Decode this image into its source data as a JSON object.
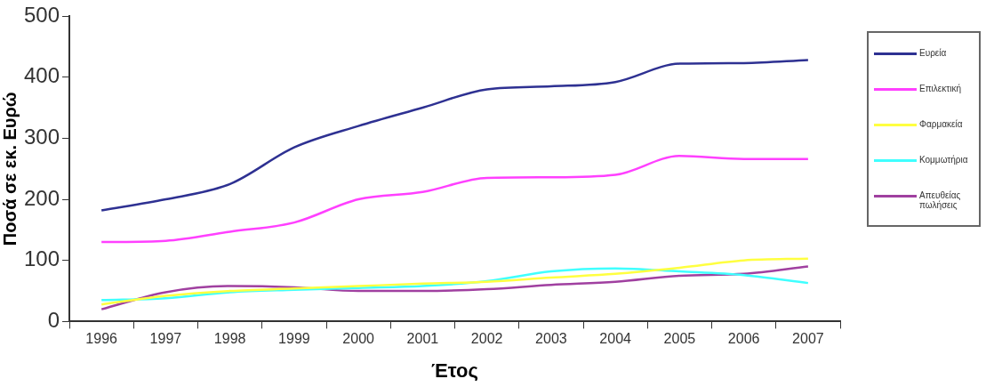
{
  "chart_data": {
    "type": "line",
    "xlabel": "Έτος",
    "ylabel": "Ποσά σε εκ. Ευρώ",
    "categories": [
      "1996",
      "1997",
      "1998",
      "1999",
      "2000",
      "2001",
      "2002",
      "2003",
      "2004",
      "2005",
      "2006",
      "2007"
    ],
    "series": [
      {
        "name": "Ευρεία",
        "color": "#2e3192",
        "values": [
          182,
          200,
          225,
          285,
          320,
          350,
          380,
          385,
          392,
          422,
          423,
          428
        ]
      },
      {
        "name": "Επιλεκτική",
        "color": "#ff40ff",
        "values": [
          130,
          132,
          147,
          162,
          200,
          212,
          235,
          236,
          240,
          271,
          266,
          266
        ]
      },
      {
        "name": "Φαρμακεία",
        "color": "#ffff40",
        "values": [
          28,
          42,
          50,
          54,
          58,
          62,
          65,
          72,
          78,
          88,
          100,
          103
        ]
      },
      {
        "name": "Κομμωτήρια",
        "color": "#40ffff",
        "values": [
          35,
          38,
          48,
          52,
          55,
          58,
          66,
          82,
          87,
          82,
          76,
          63
        ]
      },
      {
        "name": "Απευθείας πωλήσεις",
        "color": "#a040a0",
        "values": [
          20,
          48,
          58,
          56,
          50,
          50,
          53,
          60,
          65,
          75,
          78,
          90
        ]
      }
    ],
    "ylim": [
      0,
      500
    ],
    "yticks": [
      0,
      100,
      200,
      300,
      400,
      500
    ],
    "grid": false,
    "legend": "right",
    "marker": "none",
    "line_style": "solid"
  }
}
